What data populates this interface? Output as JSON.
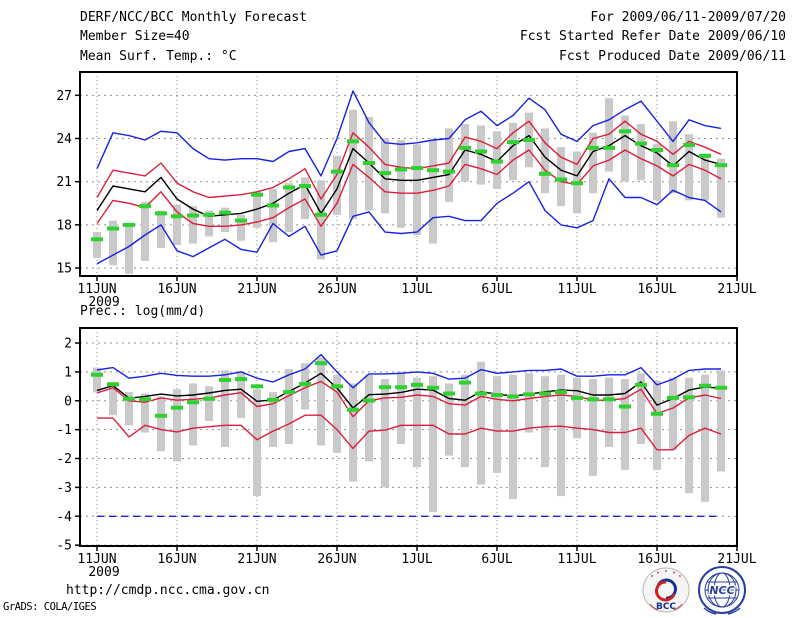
{
  "header": {
    "left": [
      "DERF/NCC/BCC Monthly Forecast",
      "Member Size=40",
      "Mean Surf. Temp.: °C"
    ],
    "right": [
      "For 2009/06/11-2009/07/20",
      "Fcst Started Refer Date 2009/06/10",
      "Fcst Produced Date 2009/06/11"
    ]
  },
  "footer": {
    "url": "http://cmdp.ncc.cma.gov.cn",
    "credit": "GrADS: COLA/IGES",
    "logos": {
      "bcc": "BCC",
      "ncc": "NCC"
    }
  },
  "colors": {
    "envelope_blue": "#1822dd",
    "spread_red": "#dc1e3c",
    "mean_black": "#000000",
    "obs_green": "#2fd12f",
    "bar_gray": "#c9c9c9",
    "grid_gray": "#909090",
    "frame_black": "#000000"
  },
  "chart_data": [
    {
      "type": "line",
      "title": "Mean Surf. Temp.: °C",
      "xlabel": "",
      "ylabel": "°C",
      "x_tick_labels": [
        "11JUN",
        "16JUN",
        "21JUN",
        "26JUN",
        "1JUL",
        "6JUL",
        "11JUL",
        "16JUL",
        "21JUL"
      ],
      "year_label": "2009",
      "y_ticks": [
        15,
        18,
        21,
        24,
        27
      ],
      "ylim": [
        14.45,
        28.62
      ],
      "grid": true,
      "legend": "none",
      "bars": {
        "name": "ensemble-spread-bar",
        "color": "#c9c9c9",
        "top": [
          17.5,
          18.3,
          18.1,
          19.6,
          19.0,
          19.4,
          19.3,
          19.0,
          19.2,
          18.7,
          20.3,
          20.5,
          20.9,
          21.3,
          21.1,
          22.8,
          26.0,
          25.5,
          24.0,
          23.9,
          23.6,
          23.9,
          24.7,
          25.0,
          24.9,
          24.5,
          25.1,
          25.8,
          24.7,
          23.4,
          23.1,
          24.4,
          26.8,
          25.6,
          25.0,
          23.6,
          25.2,
          24.3,
          22.9,
          22.6
        ],
        "bottom": [
          15.7,
          15.2,
          14.6,
          15.5,
          16.4,
          16.6,
          16.7,
          17.2,
          17.5,
          16.9,
          17.8,
          16.8,
          17.5,
          18.4,
          15.6,
          18.7,
          18.4,
          19.0,
          18.8,
          17.8,
          17.3,
          16.7,
          19.6,
          21.0,
          20.8,
          20.5,
          21.1,
          22.0,
          20.2,
          19.3,
          18.8,
          20.2,
          21.7,
          21.0,
          21.1,
          19.7,
          20.2,
          19.7,
          19.7,
          18.5
        ]
      },
      "series": [
        {
          "name": "ensemble-max",
          "color": "#1822dd",
          "style": "line",
          "values": [
            21.9,
            24.4,
            24.2,
            23.9,
            24.5,
            24.4,
            23.3,
            22.6,
            22.5,
            22.6,
            22.6,
            22.4,
            23.1,
            23.3,
            21.4,
            24.0,
            27.3,
            25.1,
            23.7,
            23.6,
            23.7,
            23.9,
            24.0,
            25.3,
            25.9,
            24.9,
            25.6,
            26.8,
            26.0,
            24.3,
            23.8,
            24.9,
            25.3,
            26.0,
            26.6,
            25.2,
            23.8,
            25.3,
            24.9,
            24.7
          ]
        },
        {
          "name": "ensemble-min",
          "color": "#1822dd",
          "style": "line",
          "values": [
            15.3,
            15.9,
            16.5,
            17.3,
            18.0,
            16.2,
            15.8,
            16.4,
            17.0,
            16.3,
            16.1,
            18.1,
            17.2,
            17.9,
            15.9,
            16.2,
            18.6,
            18.9,
            17.5,
            17.4,
            17.5,
            18.5,
            18.6,
            18.3,
            18.3,
            19.5,
            20.2,
            21.0,
            19.0,
            18.0,
            17.8,
            18.3,
            21.2,
            19.9,
            19.9,
            19.4,
            20.4,
            19.9,
            19.7,
            18.9
          ]
        },
        {
          "name": "spread-upper",
          "color": "#dc1e3c",
          "style": "line",
          "values": [
            19.9,
            21.8,
            21.6,
            21.4,
            22.3,
            20.9,
            20.3,
            19.9,
            20.0,
            20.1,
            20.3,
            20.6,
            21.2,
            21.9,
            19.8,
            21.5,
            24.4,
            23.4,
            22.2,
            22.0,
            21.9,
            22.1,
            22.3,
            24.1,
            23.8,
            23.3,
            24.4,
            25.2,
            23.7,
            22.7,
            22.2,
            24.0,
            24.3,
            25.2,
            24.3,
            23.8,
            22.9,
            23.8,
            23.4,
            22.9
          ]
        },
        {
          "name": "spread-lower",
          "color": "#dc1e3c",
          "style": "line",
          "values": [
            18.1,
            19.7,
            19.5,
            19.2,
            20.3,
            18.9,
            18.1,
            17.9,
            17.9,
            18.0,
            18.2,
            18.5,
            19.2,
            19.8,
            17.9,
            19.5,
            22.2,
            21.3,
            20.3,
            20.2,
            20.2,
            20.4,
            20.7,
            22.2,
            21.9,
            21.5,
            22.5,
            23.2,
            21.8,
            21.0,
            20.8,
            22.1,
            22.5,
            23.2,
            22.6,
            22.1,
            21.4,
            22.2,
            21.8,
            21.2
          ]
        },
        {
          "name": "ensemble-mean",
          "color": "#000000",
          "style": "line",
          "values": [
            19.0,
            20.7,
            20.5,
            20.3,
            21.3,
            19.8,
            19.1,
            18.6,
            18.7,
            18.8,
            19.1,
            19.5,
            20.2,
            20.8,
            18.8,
            20.5,
            23.3,
            22.3,
            21.2,
            21.1,
            21.1,
            21.3,
            21.5,
            23.2,
            22.9,
            22.4,
            23.5,
            24.2,
            22.7,
            21.8,
            21.4,
            23.1,
            23.5,
            24.2,
            23.5,
            23.0,
            22.1,
            23.1,
            22.5,
            22.2
          ]
        },
        {
          "name": "observation",
          "color": "#2fd12f",
          "style": "dash-markers",
          "values": [
            17.0,
            17.75,
            18.0,
            19.3,
            18.8,
            18.6,
            18.65,
            18.7,
            18.85,
            18.3,
            20.1,
            19.35,
            20.6,
            20.7,
            18.7,
            21.7,
            23.8,
            22.3,
            21.6,
            21.85,
            21.95,
            21.8,
            21.7,
            23.35,
            23.1,
            22.4,
            23.75,
            23.9,
            21.55,
            21.15,
            20.9,
            23.35,
            23.35,
            24.5,
            23.65,
            23.2,
            22.15,
            23.55,
            22.8,
            22.15
          ]
        }
      ]
    },
    {
      "type": "line",
      "title": "Prec.: log(mm/d)",
      "xlabel": "",
      "ylabel": "log(mm/d)",
      "x_tick_labels": [
        "11JUN",
        "16JUN",
        "21JUN",
        "26JUN",
        "1JUL",
        "6JUL",
        "11JUL",
        "16JUL",
        "21JUL"
      ],
      "year_label": "2009",
      "y_ticks": [
        2,
        1,
        0,
        -1,
        -2,
        -3,
        -4,
        -5
      ],
      "ylim": [
        -5.03,
        2.52
      ],
      "grid": true,
      "legend": "none",
      "bars": {
        "name": "ensemble-spread-bar",
        "color": "#c9c9c9",
        "top": [
          1.15,
          0.65,
          0.3,
          0.25,
          0.15,
          0.4,
          0.6,
          0.5,
          1.05,
          1.0,
          0.4,
          0.3,
          1.1,
          1.3,
          1.5,
          0.9,
          0.6,
          0.9,
          0.75,
          1.0,
          0.8,
          0.85,
          0.6,
          0.9,
          1.35,
          0.85,
          0.9,
          0.95,
          0.85,
          0.9,
          0.8,
          0.75,
          0.8,
          0.75,
          0.95,
          0.7,
          0.8,
          0.8,
          0.9,
          1.05
        ],
        "bottom": [
          0.29,
          -0.5,
          -0.85,
          -1.1,
          -1.75,
          -2.1,
          -1.55,
          -0.7,
          -1.6,
          -0.6,
          -3.3,
          -1.6,
          -1.5,
          -0.3,
          -1.55,
          -1.8,
          -2.8,
          -2.1,
          -3.0,
          -1.5,
          -2.3,
          -3.85,
          -1.9,
          -2.3,
          -2.9,
          -2.5,
          -3.4,
          -1.1,
          -2.3,
          -3.3,
          -1.3,
          -2.6,
          -1.6,
          -2.4,
          -1.5,
          -2.4,
          -1.7,
          -3.2,
          -3.5,
          -2.45
        ]
      },
      "series": [
        {
          "name": "ensemble-max",
          "color": "#1822dd",
          "style": "line",
          "values": [
            1.07,
            1.15,
            0.78,
            0.85,
            0.95,
            0.88,
            0.85,
            0.85,
            0.9,
            1.0,
            0.78,
            0.65,
            0.9,
            1.1,
            1.6,
            1.0,
            0.45,
            0.93,
            0.93,
            0.95,
            1.0,
            0.95,
            0.75,
            0.78,
            1.08,
            0.95,
            1.0,
            1.05,
            1.05,
            1.1,
            0.85,
            0.85,
            0.9,
            0.9,
            1.15,
            0.55,
            0.75,
            1.05,
            1.1,
            1.1
          ]
        },
        {
          "name": "ensemble-min",
          "color": "#1822dd",
          "style": "dashed-line",
          "values": [
            -4,
            -4,
            -4,
            -4,
            -4,
            -4,
            -4,
            -4,
            -4,
            -4,
            -4,
            -4,
            -4,
            -4,
            -4,
            -4,
            -4,
            -4,
            -4,
            -4,
            -4,
            -4,
            -4,
            -4,
            -4,
            -4,
            -4,
            -4,
            -4,
            -4,
            -4,
            -4,
            -4,
            -4,
            -4,
            -4,
            -4,
            -4,
            -4,
            -4
          ]
        },
        {
          "name": "spread-upper",
          "color": "#dc1e3c",
          "style": "line",
          "values": [
            0.27,
            0.45,
            0.0,
            -0.05,
            0.1,
            0.02,
            0.05,
            0.1,
            0.2,
            0.28,
            -0.2,
            -0.1,
            0.18,
            0.45,
            0.67,
            0.3,
            -0.55,
            0.0,
            0.1,
            0.12,
            0.2,
            0.15,
            -0.1,
            -0.15,
            0.15,
            0.05,
            0.0,
            0.08,
            0.15,
            0.2,
            0.15,
            0.02,
            0.02,
            0.08,
            0.4,
            -0.44,
            -0.25,
            0.1,
            0.2,
            0.08
          ]
        },
        {
          "name": "spread-lower",
          "color": "#dc1e3c",
          "style": "line",
          "values": [
            -0.6,
            -0.6,
            -1.25,
            -0.85,
            -1.0,
            -1.08,
            -0.95,
            -0.9,
            -0.85,
            -0.85,
            -1.35,
            -1.05,
            -0.8,
            -0.5,
            -0.5,
            -1.0,
            -1.65,
            -1.05,
            -1.02,
            -0.85,
            -0.85,
            -0.85,
            -1.15,
            -1.15,
            -0.95,
            -1.05,
            -1.05,
            -0.95,
            -0.9,
            -0.88,
            -0.95,
            -1.0,
            -1.1,
            -1.1,
            -0.95,
            -1.7,
            -1.7,
            -1.2,
            -0.95,
            -1.15
          ]
        },
        {
          "name": "ensemble-mean",
          "color": "#000000",
          "style": "line",
          "values": [
            0.36,
            0.52,
            0.09,
            0.15,
            0.23,
            0.17,
            0.2,
            0.27,
            0.36,
            0.4,
            -0.02,
            0.03,
            0.32,
            0.61,
            0.95,
            0.44,
            -0.25,
            0.21,
            0.23,
            0.29,
            0.4,
            0.37,
            0.08,
            0.02,
            0.31,
            0.23,
            0.16,
            0.23,
            0.31,
            0.37,
            0.35,
            0.2,
            0.2,
            0.25,
            0.65,
            -0.15,
            0.08,
            0.37,
            0.48,
            0.43
          ]
        },
        {
          "name": "observation",
          "color": "#2fd12f",
          "style": "dash-markers",
          "values": [
            0.9,
            0.57,
            0.07,
            0.05,
            -0.52,
            -0.24,
            -0.05,
            0.07,
            0.72,
            0.75,
            0.5,
            0.03,
            0.3,
            0.58,
            1.3,
            0.5,
            -0.31,
            0.01,
            0.47,
            0.47,
            0.55,
            0.45,
            0.25,
            0.63,
            0.25,
            0.2,
            0.15,
            0.22,
            0.25,
            0.3,
            0.1,
            0.05,
            0.05,
            -0.2,
            0.55,
            -0.45,
            0.1,
            0.12,
            0.52,
            0.45
          ]
        }
      ]
    }
  ]
}
